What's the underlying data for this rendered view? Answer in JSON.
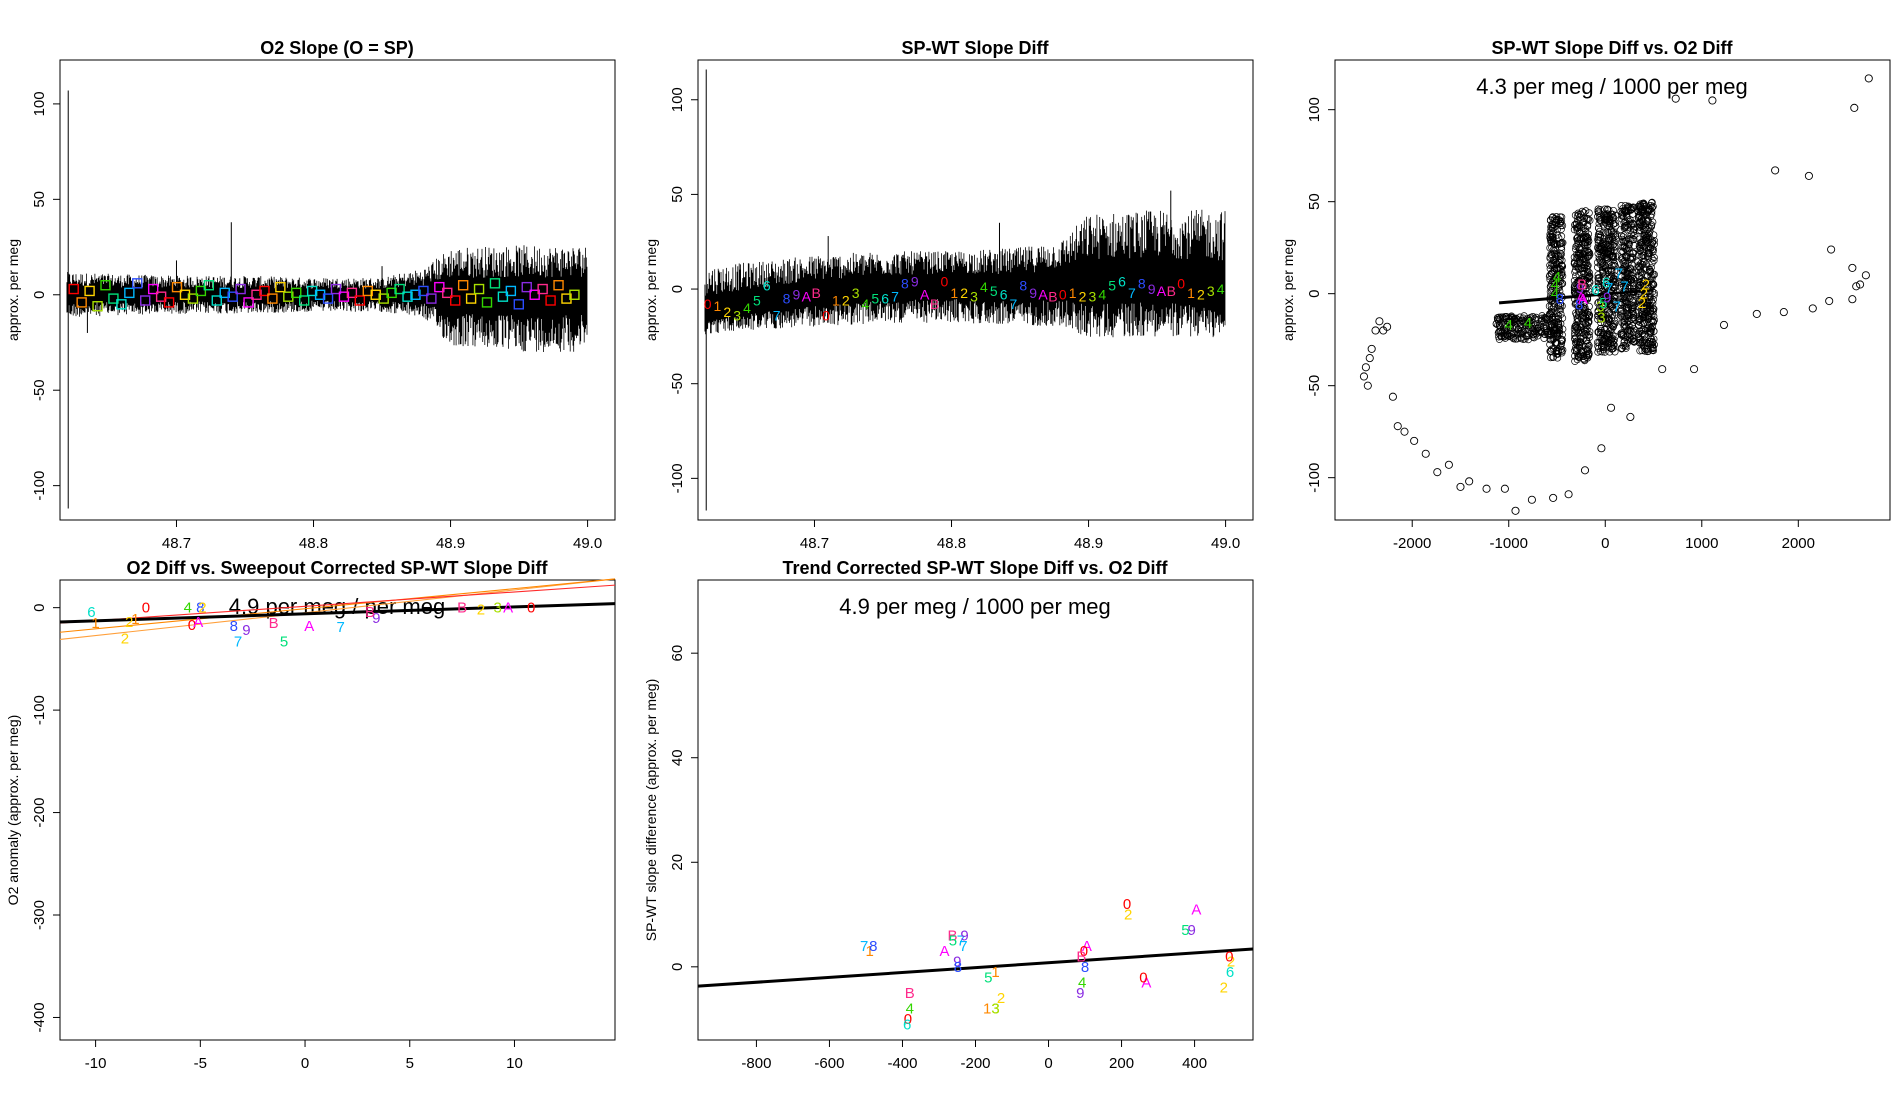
{
  "palette": [
    "#ff0000",
    "#ff8800",
    "#ffd400",
    "#a8e000",
    "#33d600",
    "#00e07a",
    "#00e0c8",
    "#00b8ff",
    "#2b4dff",
    "#8a2be2",
    "#ff00ff",
    "#ff2a8c"
  ],
  "glyph_order": [
    "0",
    "1",
    "2",
    "3",
    "4",
    "5",
    "6",
    "7",
    "8",
    "9",
    "A",
    "B"
  ],
  "chart_data": [
    {
      "id": "p1",
      "type": "line",
      "title": "O2 Slope (O = SP)",
      "xlabel": "",
      "ylabel": "approx. per meg",
      "xlim": [
        48.615,
        49.02
      ],
      "ylim": [
        -118,
        123
      ],
      "xticks": [
        48.7,
        48.8,
        48.9,
        49.0
      ],
      "xtick_labels": [
        "48.7",
        "48.8",
        "48.9",
        "49.0"
      ],
      "yticks": [
        -100,
        -50,
        0,
        50,
        100
      ],
      "ytick_labels": [
        "-100",
        "-50",
        "0",
        "50",
        "100"
      ],
      "series": [
        {
          "name": "band",
          "x": [
            48.62,
            48.65,
            48.7,
            48.75,
            48.8,
            48.85,
            48.88,
            48.9,
            48.95,
            49.0
          ],
          "lower": [
            -12,
            -11,
            -10,
            -10,
            -9,
            -9,
            -12,
            -27,
            -30,
            -30
          ],
          "upper": [
            12,
            11,
            10,
            10,
            9,
            9,
            14,
            25,
            26,
            26
          ]
        },
        {
          "name": "spikes",
          "x": [
            48.621,
            48.621,
            48.635,
            48.7,
            48.74,
            48.85
          ],
          "y": [
            107,
            -112,
            -20,
            18,
            38,
            15
          ]
        }
      ],
      "marker": "square",
      "marker_start": 48.625,
      "marker_step": 0.0058,
      "marker_count": 64,
      "marker_values": [
        3,
        -4,
        2,
        -6,
        5,
        -2,
        -5,
        1,
        6,
        -3,
        3,
        -1,
        -4,
        4,
        0,
        -2,
        2,
        5,
        -3,
        1,
        -1,
        3,
        -4,
        0,
        2,
        -2,
        4,
        -1,
        1,
        -3,
        2,
        0,
        -2,
        3,
        -1,
        1,
        -3,
        2,
        0,
        -2,
        1,
        3,
        -1,
        0,
        2,
        -2,
        4,
        1,
        -3,
        5,
        -2,
        3,
        -4,
        6,
        -1,
        2,
        -5,
        4,
        0,
        3,
        -3,
        5,
        -2,
        0
      ]
    },
    {
      "id": "p2",
      "type": "line",
      "title": "SP-WT Slope Diff",
      "xlabel": "",
      "ylabel": "approx. per meg",
      "xlim": [
        48.615,
        49.02
      ],
      "ylim": [
        -122,
        121
      ],
      "xticks": [
        48.7,
        48.8,
        48.9,
        49.0
      ],
      "xtick_labels": [
        "48.7",
        "48.8",
        "48.9",
        "49.0"
      ],
      "yticks": [
        -100,
        -50,
        0,
        50,
        100
      ],
      "ytick_labels": [
        "-100",
        "-50",
        "0",
        "50",
        "100"
      ],
      "series": [
        {
          "name": "band",
          "x": [
            48.62,
            48.65,
            48.7,
            48.75,
            48.8,
            48.85,
            48.88,
            48.9,
            48.95,
            49.0
          ],
          "lower": [
            -24,
            -22,
            -20,
            -18,
            -18,
            -19,
            -20,
            -26,
            -25,
            -26
          ],
          "upper": [
            12,
            14,
            18,
            20,
            20,
            22,
            26,
            40,
            42,
            42
          ],
          "center": [
            -12,
            -8,
            -3,
            0,
            2,
            0,
            3,
            2,
            3,
            0
          ]
        },
        {
          "name": "spikes",
          "x": [
            48.621,
            48.621,
            48.71,
            48.835,
            48.96
          ],
          "y": [
            116,
            -117,
            28,
            35,
            52
          ]
        }
      ],
      "marker": "glyph",
      "marker_start": 48.622,
      "marker_step": 0.0072,
      "marker_count": 53,
      "marker_values": [
        -8,
        -9,
        -12,
        -14,
        -10,
        -6,
        2,
        -14,
        -5,
        -3,
        -4,
        -2,
        -14,
        -6,
        -6,
        -2,
        -8,
        -5,
        -5,
        -4,
        3,
        4,
        -3,
        -8,
        4,
        -2,
        -2,
        -4,
        1,
        -1,
        -3,
        -8,
        2,
        -2,
        -3,
        -4,
        -3,
        -2,
        -4,
        -4,
        -3,
        2,
        4,
        -2,
        3,
        0,
        -1,
        -1,
        3,
        -2,
        -3,
        -1,
        0
      ]
    },
    {
      "id": "p3",
      "type": "scatter",
      "title": "SP-WT Slope Diff vs. O2 Diff",
      "annotation": "4.3 per meg / 1000 per meg",
      "xlabel": "",
      "ylabel": "approx. per meg",
      "xlim": [
        -2800,
        2950
      ],
      "ylim": [
        -123,
        127
      ],
      "xticks": [
        -2000,
        -1000,
        0,
        1000,
        2000
      ],
      "xtick_labels": [
        "-2000",
        "-1000",
        "0",
        "1000",
        "2000"
      ],
      "yticks": [
        -100,
        -50,
        0,
        50,
        100
      ],
      "ytick_labels": [
        "-100",
        "-50",
        "0",
        "50",
        "100"
      ],
      "points": {
        "x": [
          -2500,
          -2480,
          -2460,
          -2440,
          -2420,
          -2380,
          -2340,
          -2300,
          -2260,
          -2200,
          -2150,
          -2080,
          -1980,
          -1860,
          -1740,
          -1620,
          -1500,
          -1410,
          -1230,
          -1040,
          -930,
          -760,
          -540,
          -380,
          -210,
          -40,
          60,
          260,
          590,
          920,
          1230,
          1570,
          1850,
          2150,
          2320,
          2560,
          2600,
          2640,
          2700,
          2560,
          2340,
          2110,
          1760,
          1110,
          730,
          2580,
          2730
        ],
        "y": [
          -45,
          -40,
          -50,
          -35,
          -30,
          -20,
          -15,
          -20,
          -18,
          -56,
          -72,
          -75,
          -80,
          -87,
          -97,
          -93,
          -105,
          -102,
          -106,
          -106,
          -118,
          -112,
          -111,
          -109,
          -96,
          -84,
          -62,
          -67,
          -41,
          -41,
          -17,
          -11,
          -10,
          -8,
          -4,
          -3,
          4,
          5,
          10,
          14,
          24,
          64,
          67,
          105,
          106,
          101,
          117
        ]
      },
      "dense_boxes": [
        {
          "xmin": -1130,
          "xmax": -580,
          "ymin": -25,
          "ymax": -12
        },
        {
          "xmin": -580,
          "xmax": -440,
          "ymin": -35,
          "ymax": 42
        },
        {
          "xmin": -320,
          "xmax": -160,
          "ymin": -37,
          "ymax": 45
        },
        {
          "xmin": -80,
          "xmax": 110,
          "ymin": -32,
          "ymax": 46
        },
        {
          "xmin": 160,
          "xmax": 300,
          "ymin": -30,
          "ymax": 48
        },
        {
          "xmin": 340,
          "xmax": 510,
          "ymin": -32,
          "ymax": 50
        }
      ],
      "label_points": {
        "labels": [
          "4",
          "4",
          "4",
          "4",
          "9",
          "A",
          "B",
          "8",
          "8",
          "4",
          "A",
          "6",
          "3",
          "3",
          "5",
          "6",
          "9",
          "7",
          "7",
          "7",
          "7",
          "2",
          "2",
          "2"
        ],
        "x": [
          -1000,
          -520,
          -520,
          -500,
          -260,
          -250,
          -240,
          -470,
          -270,
          -800,
          -230,
          -100,
          -50,
          -40,
          -20,
          10,
          20,
          40,
          120,
          140,
          200,
          380,
          400,
          420
        ],
        "y": [
          -17,
          0,
          5,
          9,
          3,
          -2,
          5,
          -3,
          -6,
          -16,
          -3,
          2,
          -7,
          -13,
          -5,
          6,
          -2,
          3,
          -7,
          11,
          4,
          -5,
          0,
          5
        ]
      },
      "fit_x": [
        -1100,
        500
      ],
      "fit_y": [
        -5,
        2
      ]
    },
    {
      "id": "p4",
      "type": "scatter",
      "title": "O2 Diff vs. Sweepout Corrected SP-WT Slope Diff",
      "annotation": "4.9 per meg / per meg",
      "xlabel": "",
      "ylabel": "O2 anomaly (approx. per meg)",
      "xlim": [
        -11.7,
        14.8
      ],
      "ylim": [
        -422,
        27
      ],
      "xticks": [
        -10,
        -5,
        0,
        5,
        10
      ],
      "xtick_labels": [
        "-10",
        "-5",
        "0",
        "5",
        "10"
      ],
      "yticks": [
        -400,
        -300,
        -200,
        -100,
        0
      ],
      "ytick_labels": [
        "-400",
        "-300",
        "-200",
        "-100",
        "0"
      ],
      "label_points": {
        "labels": [
          "6",
          "1",
          "2",
          "2",
          "1",
          "0",
          "4",
          "8",
          "2",
          "0",
          "A",
          "8",
          "7",
          "9",
          "B",
          "5",
          "A",
          "7",
          "9",
          "B",
          "2",
          "3",
          "A",
          "B",
          "0"
        ],
        "x": [
          -10.2,
          -10.0,
          -8.6,
          -8.4,
          -8.1,
          -7.6,
          -5.6,
          -5.0,
          -4.9,
          -5.4,
          -5.1,
          -3.4,
          -3.2,
          -2.8,
          -1.5,
          -1.0,
          0.2,
          1.7,
          3.4,
          7.5,
          8.4,
          9.2,
          9.7,
          3.1,
          10.8
        ],
        "y": [
          -4,
          -15,
          -30,
          -14,
          -11,
          0,
          0,
          0,
          0,
          -17,
          -14,
          -18,
          -33,
          -22,
          -15,
          -33,
          -18,
          -19,
          -10,
          0,
          -2,
          0,
          0,
          -4,
          0
        ]
      },
      "fit_lines": [
        {
          "name": "black",
          "x": [
            -11.7,
            14.8
          ],
          "y": [
            -14,
            4
          ]
        },
        {
          "name": "red",
          "x": [
            -11.7,
            14.8
          ],
          "y": [
            -15,
            22
          ]
        },
        {
          "name": "orange1",
          "x": [
            -11.7,
            14.8
          ],
          "y": [
            -24,
            28
          ]
        },
        {
          "name": "orange2",
          "x": [
            -11.7,
            14.8
          ],
          "y": [
            -31,
            28
          ]
        }
      ]
    },
    {
      "id": "p5",
      "type": "scatter",
      "title": "Trend Corrected SP-WT Slope Diff vs. O2 Diff",
      "annotation": "4.9 per meg / 1000 per meg",
      "xlabel": "",
      "ylabel": "SP-WT slope difference (approx. per meg)",
      "xlim": [
        -960,
        560
      ],
      "ylim": [
        -14,
        74
      ],
      "xticks": [
        -800,
        -600,
        -400,
        -200,
        0,
        200,
        400
      ],
      "xtick_labels": [
        "-800",
        "-600",
        "-400",
        "-200",
        "0",
        "200",
        "400"
      ],
      "yticks": [
        0,
        20,
        40,
        60
      ],
      "ytick_labels": [
        "0",
        "20",
        "40",
        "60"
      ],
      "label_points": {
        "labels": [
          "7",
          "1",
          "8",
          "B",
          "5",
          "7",
          "A",
          "9",
          "8",
          "9",
          "7",
          "1",
          "3",
          "1",
          "5",
          "2",
          "3",
          "B",
          "4",
          "0",
          "6",
          "0",
          "2",
          "5",
          "9",
          "A",
          "A",
          "0",
          "B",
          "A",
          "0",
          "8",
          "4",
          "9",
          "2",
          "6",
          "2",
          "0"
        ],
        "x": [
          -505,
          -490,
          -480,
          -263,
          -262,
          -240,
          -285,
          -250,
          -248,
          -230,
          -233,
          -168,
          -145,
          -145,
          -165,
          -130,
          -145,
          -380,
          -380,
          -385,
          -387,
          215,
          218,
          375,
          392,
          405,
          105,
          97,
          90,
          268,
          260,
          100,
          92,
          87,
          500,
          497,
          480,
          495
        ],
        "y": [
          4,
          3,
          4,
          6,
          5,
          5,
          3,
          1,
          0,
          6,
          4,
          -8,
          -8,
          -1,
          -2,
          -6,
          -8,
          -5,
          -8,
          -10,
          -11,
          12,
          10,
          7,
          7,
          11,
          4,
          3,
          2,
          -3,
          -2,
          0,
          -3,
          -5,
          1,
          -1,
          -4,
          2
        ]
      },
      "fit_x": [
        -960,
        560
      ],
      "fit_y": [
        -3.7,
        3.4
      ]
    }
  ]
}
